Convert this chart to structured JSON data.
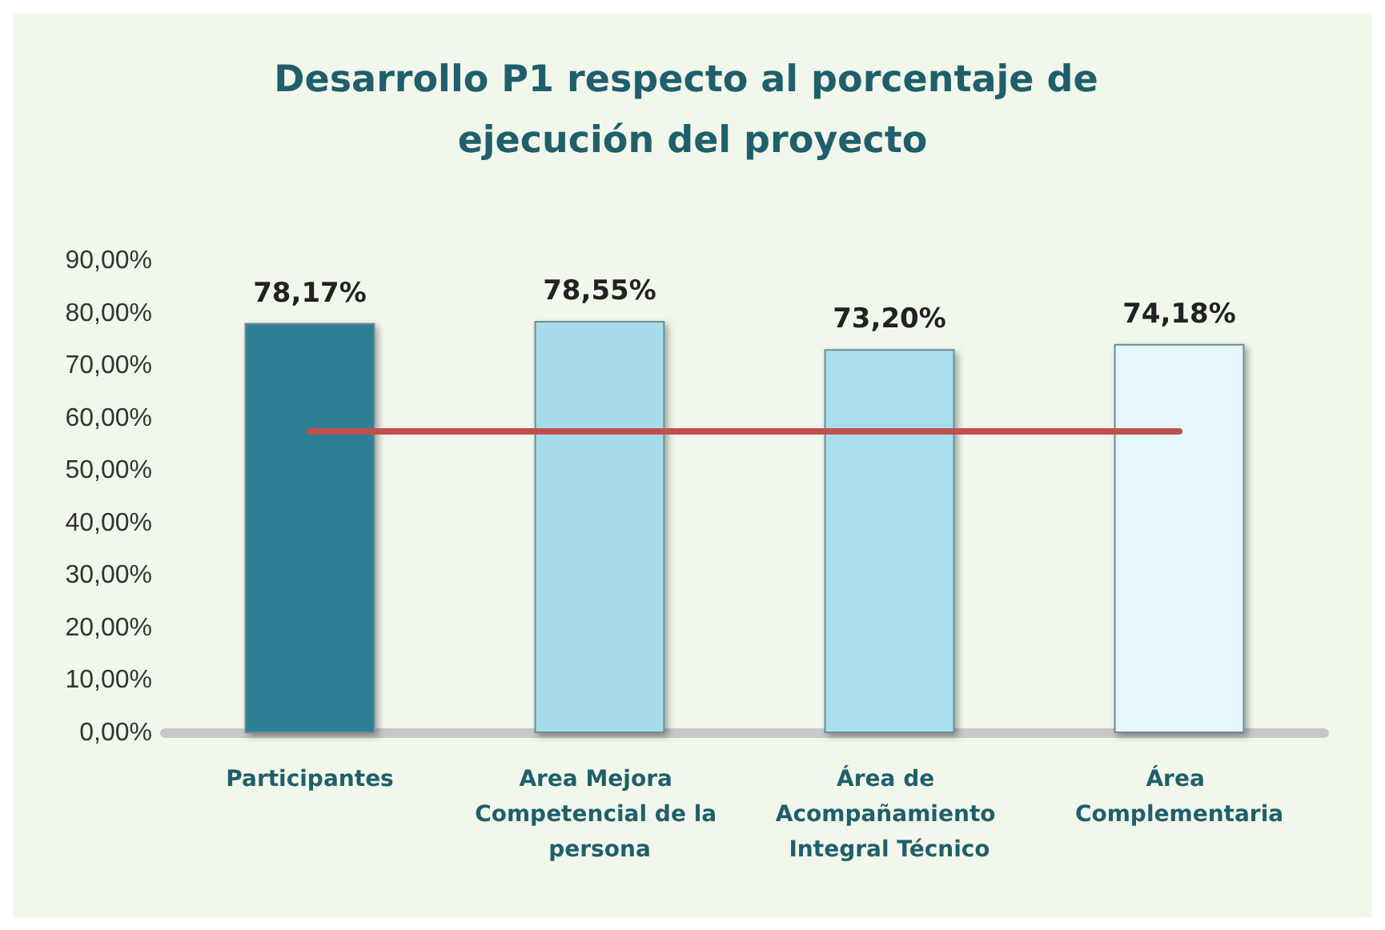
{
  "chart_data": {
    "type": "bar",
    "title": "Desarrollo P1 respecto al porcentaje de ejecución del proyecto",
    "categories": [
      "Participantes",
      "Area Mejora Competencial de la persona",
      "Área de Acompañamiento Integral Técnico",
      "Área Complementaria"
    ],
    "series": [
      {
        "values": [
          78.17,
          78.55,
          73.2,
          74.18
        ],
        "colors": [
          "#2e7f95",
          "#a6dcea",
          "#a9dfec",
          "#e6f7fc"
        ],
        "value_labels": [
          "78,17%",
          "78,55%",
          "73,20%",
          "74,18%"
        ]
      },
      {
        "type": "line",
        "color": "#c0504d",
        "values": [
          57.5,
          57.5,
          57.5,
          57.5
        ]
      }
    ],
    "ylim": [
      0,
      90
    ],
    "yticks": [
      {
        "value": 0,
        "label": "0,00%"
      },
      {
        "value": 10,
        "label": "10,00%"
      },
      {
        "value": 20,
        "label": "20,00%"
      },
      {
        "value": 30,
        "label": "30,00%"
      },
      {
        "value": 40,
        "label": "40,00%"
      },
      {
        "value": 50,
        "label": "50,00%"
      },
      {
        "value": 60,
        "label": "60,00%"
      },
      {
        "value": 70,
        "label": "70,00%"
      },
      {
        "value": 80,
        "label": "80,00%"
      },
      {
        "value": 90,
        "label": "90,00%"
      }
    ],
    "grid": false,
    "marker": "none",
    "line_style": "solid"
  }
}
